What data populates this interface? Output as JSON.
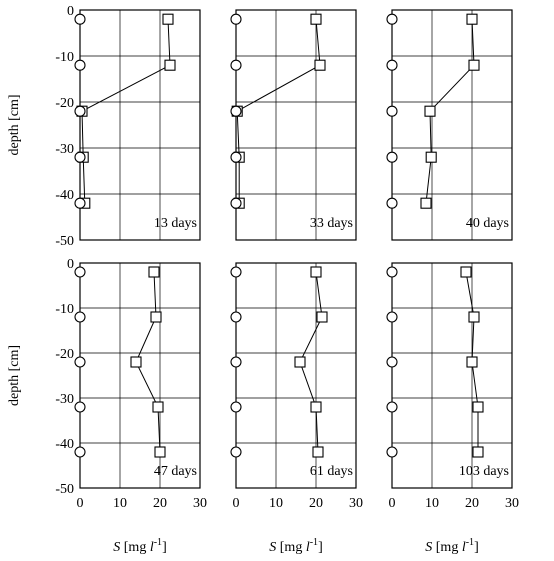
{
  "chart_data": [
    {
      "type": "line",
      "label": "13 days",
      "ylabel": "depth  [cm]",
      "xlabel": "",
      "xlim": [
        0,
        30
      ],
      "ylim": [
        -50,
        0
      ],
      "series": [
        {
          "marker": "square",
          "x": [
            22,
            22.5,
            0.5,
            0.8,
            1.2
          ],
          "y": [
            -2,
            -12,
            -22,
            -32,
            -42
          ]
        },
        {
          "marker": "circle",
          "x": [
            0,
            0,
            0,
            0,
            0
          ],
          "y": [
            -2,
            -12,
            -22,
            -32,
            -42
          ]
        }
      ]
    },
    {
      "type": "line",
      "label": "33 days",
      "ylabel": "",
      "xlabel": "",
      "xlim": [
        0,
        30
      ],
      "ylim": [
        -50,
        0
      ],
      "series": [
        {
          "marker": "square",
          "x": [
            20,
            21,
            0.3,
            0.8,
            0.8
          ],
          "y": [
            -2,
            -12,
            -22,
            -32,
            -42
          ]
        },
        {
          "marker": "circle",
          "x": [
            0,
            0,
            0,
            0,
            0
          ],
          "y": [
            -2,
            -12,
            -22,
            -32,
            -42
          ]
        }
      ]
    },
    {
      "type": "line",
      "label": "40 days",
      "ylabel": "",
      "xlabel": "",
      "xlim": [
        0,
        30
      ],
      "ylim": [
        -50,
        0
      ],
      "series": [
        {
          "marker": "square",
          "x": [
            20,
            20.5,
            9.5,
            9.8,
            8.5
          ],
          "y": [
            -2,
            -12,
            -22,
            -32,
            -42
          ]
        },
        {
          "marker": "circle",
          "x": [
            0,
            0,
            0,
            0,
            0
          ],
          "y": [
            -2,
            -12,
            -22,
            -32,
            -42
          ]
        }
      ]
    },
    {
      "type": "line",
      "label": "47 days",
      "ylabel": "depth  [cm]",
      "xlabel": "S [mg l⁻¹]",
      "xlim": [
        0,
        30
      ],
      "ylim": [
        -50,
        0
      ],
      "series": [
        {
          "marker": "square",
          "x": [
            18.5,
            19,
            14,
            19.5,
            20
          ],
          "y": [
            -2,
            -12,
            -22,
            -32,
            -42
          ]
        },
        {
          "marker": "circle",
          "x": [
            0,
            0,
            0,
            0,
            0
          ],
          "y": [
            -2,
            -12,
            -22,
            -32,
            -42
          ]
        }
      ]
    },
    {
      "type": "line",
      "label": "61 days",
      "ylabel": "",
      "xlabel": "S [mg l⁻¹]",
      "xlim": [
        0,
        30
      ],
      "ylim": [
        -50,
        0
      ],
      "series": [
        {
          "marker": "square",
          "x": [
            20,
            21.5,
            16,
            20,
            20.5
          ],
          "y": [
            -2,
            -12,
            -22,
            -32,
            -42
          ]
        },
        {
          "marker": "circle",
          "x": [
            0,
            0,
            0,
            0,
            0
          ],
          "y": [
            -2,
            -12,
            -22,
            -32,
            -42
          ]
        }
      ]
    },
    {
      "type": "line",
      "label": "103 days",
      "ylabel": "",
      "xlabel": "S [mg l⁻¹]",
      "xlim": [
        0,
        30
      ],
      "ylim": [
        -50,
        0
      ],
      "series": [
        {
          "marker": "square",
          "x": [
            18.5,
            20.5,
            20,
            21.5,
            21.5
          ],
          "y": [
            -2,
            -12,
            -22,
            -32,
            -42
          ]
        },
        {
          "marker": "circle",
          "x": [
            0,
            0,
            0,
            0,
            0
          ],
          "y": [
            -2,
            -12,
            -22,
            -32,
            -42
          ]
        }
      ]
    }
  ],
  "axes": {
    "y_ticks": [
      "0",
      "-10",
      "-20",
      "-30",
      "-40",
      "-50"
    ],
    "x_ticks": [
      "0",
      "10",
      "20",
      "30"
    ],
    "grid": true
  }
}
